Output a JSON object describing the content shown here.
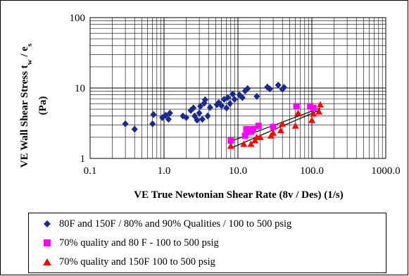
{
  "chart_data": {
    "type": "scatter",
    "x_scale": "log",
    "y_scale": "log",
    "xlim": [
      0.1,
      1000
    ],
    "ylim": [
      1,
      100
    ],
    "xticks": [
      "0.1",
      "1.0",
      "10.0",
      "100.0",
      "1000.0"
    ],
    "yticks": [
      "1",
      "10",
      "100"
    ],
    "xlabel": "VE True Newtonian Shear Rate (8v / Des) (1/s)",
    "ylabel_main": "VE Wall Shear Stress  t",
    "ylabel_sub1": "w",
    "ylabel_mid": " / e",
    "ylabel_sub2": "s",
    "ylabel_unit": "(Pa)",
    "grid": true,
    "legend_position": "bottom",
    "series": [
      {
        "name": "80F and 150F / 80% and 90% Qualities / 100 to 500 psig",
        "marker": "diamond",
        "color": "#1a2a8c",
        "points": [
          [
            0.3,
            3.1
          ],
          [
            0.4,
            2.6
          ],
          [
            0.7,
            3.1
          ],
          [
            0.72,
            4.2
          ],
          [
            0.95,
            3.8
          ],
          [
            1.05,
            4.1
          ],
          [
            1.15,
            3.6
          ],
          [
            1.2,
            4.4
          ],
          [
            1.8,
            4.0
          ],
          [
            2.0,
            3.8
          ],
          [
            2.3,
            4.8
          ],
          [
            2.5,
            5.2
          ],
          [
            2.6,
            4.0
          ],
          [
            2.8,
            3.5
          ],
          [
            3.0,
            4.4
          ],
          [
            3.1,
            5.5
          ],
          [
            3.3,
            3.6
          ],
          [
            3.5,
            6.1
          ],
          [
            3.6,
            6.8
          ],
          [
            3.9,
            4.0
          ],
          [
            4.2,
            5.3
          ],
          [
            5.2,
            5.8
          ],
          [
            5.5,
            6.2
          ],
          [
            6.0,
            5.6
          ],
          [
            6.5,
            6.9
          ],
          [
            7.0,
            5.2
          ],
          [
            7.3,
            7.3
          ],
          [
            7.8,
            6.0
          ],
          [
            8.5,
            8.2
          ],
          [
            9.0,
            6.9
          ],
          [
            10.5,
            8.0
          ],
          [
            11.5,
            7.3
          ],
          [
            12.5,
            9.1
          ],
          [
            13.5,
            9.8
          ],
          [
            18.0,
            7.6
          ],
          [
            25.0,
            10.3
          ],
          [
            27.0,
            9.7
          ],
          [
            35.0,
            11.0
          ],
          [
            40.0,
            9.6
          ],
          [
            42.0,
            10.2
          ]
        ]
      },
      {
        "name": "70% quality and 80 F - 100 to 500 psig",
        "marker": "square",
        "color": "#ff00ff",
        "points": [
          [
            8.0,
            1.8
          ],
          [
            12.5,
            2.1
          ],
          [
            13.0,
            2.6
          ],
          [
            14.0,
            2.5
          ],
          [
            15.0,
            2.4
          ],
          [
            16.0,
            2.6
          ],
          [
            19.0,
            2.9
          ],
          [
            30.0,
            2.8
          ],
          [
            62.0,
            5.5
          ],
          [
            95.0,
            5.5
          ],
          [
            105.0,
            5.2
          ]
        ]
      },
      {
        "name": "70% quality and 150F 100 to 500 psig",
        "marker": "triangle",
        "color": "#ff0000",
        "points": [
          [
            8.0,
            1.5
          ],
          [
            12.0,
            1.6
          ],
          [
            15.0,
            1.6
          ],
          [
            17.0,
            1.8
          ],
          [
            18.0,
            2.0
          ],
          [
            20.0,
            2.0
          ],
          [
            28.0,
            2.1
          ],
          [
            30.0,
            2.3
          ],
          [
            38.0,
            2.5
          ],
          [
            40.0,
            3.1
          ],
          [
            60.0,
            2.9
          ],
          [
            65.0,
            4.4
          ],
          [
            100.0,
            3.5
          ],
          [
            105.0,
            4.3
          ],
          [
            125.0,
            4.6
          ],
          [
            130.0,
            5.8
          ]
        ]
      }
    ],
    "trendlines": [
      {
        "color": "#000000",
        "from": [
          8.0,
          1.75
        ],
        "to": [
          130.0,
          5.2
        ]
      },
      {
        "color": "#000000",
        "from": [
          8.0,
          1.4
        ],
        "to": [
          130.0,
          4.9
        ]
      }
    ]
  }
}
